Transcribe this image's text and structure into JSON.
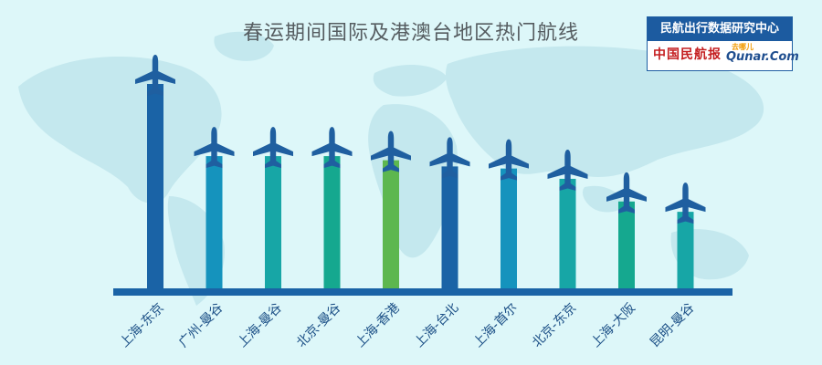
{
  "title": "春运期间国际及港澳台地区热门航线",
  "source": {
    "label": "民航出行数据研究中心",
    "logos": [
      "中国民航报",
      "去哪儿",
      "Qunar.Com"
    ]
  },
  "colors": {
    "background": "#ddf7f9",
    "map": "#bfe6ec",
    "baseline": "#1a63a6",
    "plane": "#1f5fa0",
    "dark_blue": "#1a63a6",
    "teal_blue": "#1593bd",
    "teal": "#17a6a6",
    "teal_green": "#15a88f",
    "green": "#5db74f"
  },
  "chart_data": {
    "type": "bar",
    "categories": [
      "上海-东京",
      "广州-曼谷",
      "上海-曼谷",
      "北京-曼谷",
      "上海-香港",
      "上海-台北",
      "上海-首尔",
      "北京-东京",
      "上海-大阪",
      "昆明-曼谷"
    ],
    "values": [
      100,
      65,
      65,
      65,
      63,
      60,
      59,
      54,
      43,
      38
    ],
    "bar_colors": [
      "#1a63a6",
      "#1593bd",
      "#17a6a6",
      "#15a88f",
      "#5db74f",
      "#1a63a6",
      "#1593bd",
      "#17a6a6",
      "#15a88f",
      "#17a6a6"
    ],
    "title": "春运期间国际及港澳台地区热门航线",
    "xlabel": "",
    "ylabel": "",
    "ylim": [
      0,
      100
    ],
    "grid": false,
    "legend": "none"
  }
}
